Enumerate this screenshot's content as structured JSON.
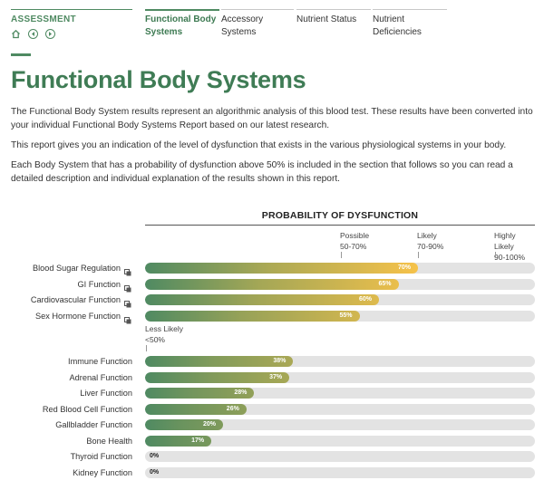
{
  "nav": {
    "section_label": "ASSESSMENT",
    "icons": [
      "home-icon",
      "back-icon",
      "forward-icon"
    ],
    "tabs": [
      {
        "label": "Functional Body Systems",
        "active": true
      },
      {
        "label": "Accessory Systems",
        "active": false
      },
      {
        "label": "Nutrient Status",
        "active": false
      },
      {
        "label": "Nutrient Deficiencies",
        "active": false
      }
    ]
  },
  "page": {
    "title": "Functional Body Systems",
    "paragraphs": [
      "The Functional Body System results represent an algorithmic analysis of this blood test. These results have been converted into your individual Functional Body Systems Report based on our latest research.",
      "This report gives you an indication of the level of dysfunction that exists in the various physiological systems in your body.",
      "Each Body System that has a probability of dysfunction above 50% is included in the section that follows so you can read a detailed description and individual explanation of the results shown in this report."
    ]
  },
  "colors": {
    "brand_green": "#4f8a62",
    "bar_low": "#4f8a62",
    "bar_high": "#f6c24a",
    "track": "#e3e3e3"
  },
  "chart_data": {
    "type": "bar",
    "orientation": "horizontal",
    "title": "PROBABILITY OF DYSFUNCTION",
    "xlim": [
      0,
      100
    ],
    "zones": [
      {
        "label": "Less Likely",
        "range": "<50%"
      },
      {
        "label": "Possible",
        "range": "50-70%"
      },
      {
        "label": "Likely",
        "range": "70-90%"
      },
      {
        "label": "Highly Likely",
        "range": "90-100%"
      }
    ],
    "groups": [
      {
        "items": [
          {
            "name": "Blood Sugar Regulation",
            "value": 70,
            "label": "70%",
            "has_report_icon": true
          },
          {
            "name": "GI Function",
            "value": 65,
            "label": "65%",
            "has_report_icon": true
          },
          {
            "name": "Cardiovascular Function",
            "value": 60,
            "label": "60%",
            "has_report_icon": true
          },
          {
            "name": "Sex Hormone Function",
            "value": 55,
            "label": "55%",
            "has_report_icon": true
          }
        ]
      },
      {
        "items": [
          {
            "name": "Immune Function",
            "value": 38,
            "label": "38%",
            "has_report_icon": false
          },
          {
            "name": "Adrenal Function",
            "value": 37,
            "label": "37%",
            "has_report_icon": false
          },
          {
            "name": "Liver Function",
            "value": 28,
            "label": "28%",
            "has_report_icon": false
          },
          {
            "name": "Red Blood Cell Function",
            "value": 26,
            "label": "26%",
            "has_report_icon": false
          },
          {
            "name": "Gallbladder Function",
            "value": 20,
            "label": "20%",
            "has_report_icon": false
          },
          {
            "name": "Bone Health",
            "value": 17,
            "label": "17%",
            "has_report_icon": false
          },
          {
            "name": "Thyroid Function",
            "value": 0,
            "label": "0%",
            "has_report_icon": false
          },
          {
            "name": "Kidney Function",
            "value": 0,
            "label": "0%",
            "has_report_icon": false
          }
        ]
      }
    ]
  }
}
